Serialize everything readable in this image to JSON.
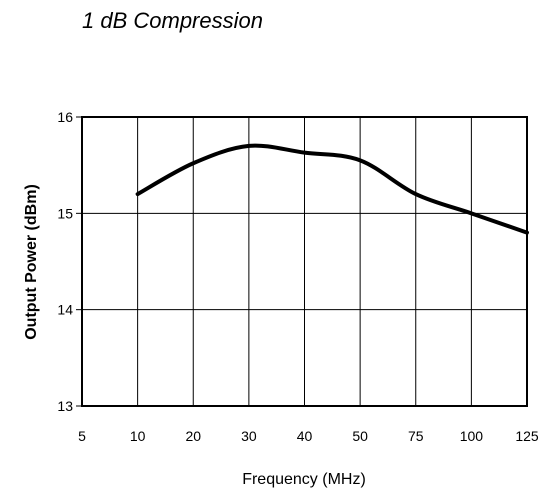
{
  "chart_data": {
    "type": "line",
    "title": "1 dB Compression",
    "xlabel": "Frequency (MHz)",
    "ylabel": "Output Power (dBm)",
    "categories": [
      "5",
      "10",
      "20",
      "30",
      "40",
      "50",
      "75",
      "100",
      "125"
    ],
    "x": [
      5,
      10,
      20,
      30,
      40,
      50,
      75,
      100,
      125
    ],
    "series": [
      {
        "x": [
          10,
          20,
          30,
          40,
          50,
          75,
          100,
          125
        ],
        "values": [
          15.2,
          15.52,
          15.7,
          15.63,
          15.55,
          15.2,
          15.0,
          14.8
        ]
      }
    ],
    "ylim": [
      13,
      16
    ],
    "yticks": [
      13,
      14,
      15,
      16
    ],
    "grid": true,
    "legend": "none",
    "colors": {
      "line": "#000000",
      "grid": "#000000",
      "background": "#ffffff"
    }
  }
}
